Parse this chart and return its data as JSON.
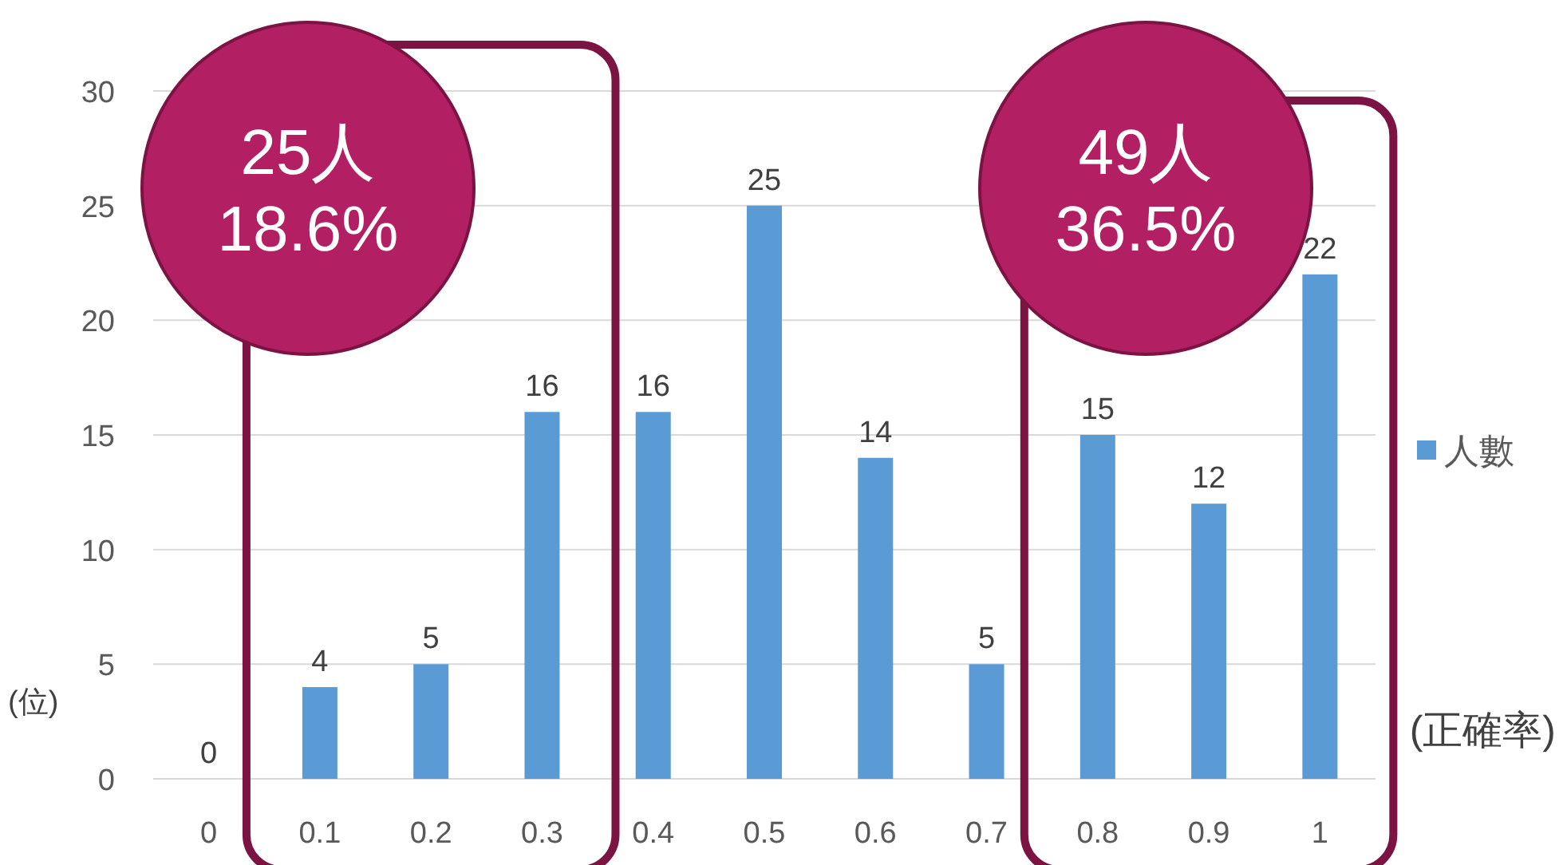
{
  "chart_data": {
    "type": "bar",
    "categories": [
      "0",
      "0.1",
      "0.2",
      "0.3",
      "0.4",
      "0.5",
      "0.6",
      "0.7",
      "0.8",
      "0.9",
      "1"
    ],
    "series": [
      {
        "name": "人數",
        "color": "#5b9bd5",
        "values": [
          0,
          4,
          5,
          16,
          16,
          25,
          14,
          5,
          15,
          12,
          22
        ]
      }
    ],
    "ylim": [
      0,
      30
    ],
    "yticks": [
      0,
      5,
      10,
      15,
      20,
      25,
      30
    ],
    "grid": "y",
    "legend": "right",
    "data_labels": true,
    "ylabel": "(位)",
    "xlabel": "(正確率)",
    "annotations": [
      "25人\n18.6%",
      "49人\n36.5%"
    ]
  }
}
